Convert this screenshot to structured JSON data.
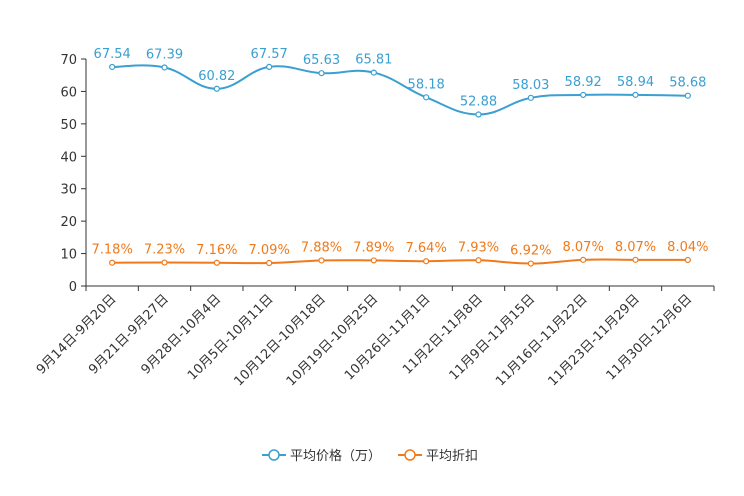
{
  "chart_data": {
    "type": "line",
    "categories": [
      "9月14日-9月20日",
      "9月21日-9月27日",
      "9月28日-10月4日",
      "10月5日-10月11日",
      "10月12日-10月18日",
      "10月19日-10月25日",
      "10月26日-11月1日",
      "11月2日-11月8日",
      "11月9日-11月15日",
      "11月16日-11月22日",
      "11月23日-11月29日",
      "11月30日-12月6日"
    ],
    "series": [
      {
        "name": "平均价格（万）",
        "color": "#3a9fd1",
        "values": [
          67.54,
          67.39,
          60.82,
          67.57,
          65.63,
          65.81,
          58.18,
          52.88,
          58.03,
          58.92,
          58.94,
          58.68
        ],
        "labels": [
          "67.54",
          "67.39",
          "60.82",
          "67.57",
          "65.63",
          "65.81",
          "58.18",
          "52.88",
          "58.03",
          "58.92",
          "58.94",
          "58.68"
        ]
      },
      {
        "name": "平均折扣",
        "color": "#ef7a1c",
        "values": [
          7.18,
          7.23,
          7.16,
          7.09,
          7.88,
          7.89,
          7.64,
          7.93,
          6.92,
          8.07,
          8.07,
          8.04
        ],
        "labels": [
          "7.18%",
          "7.23%",
          "7.16%",
          "7.09%",
          "7.88%",
          "7.89%",
          "7.64%",
          "7.93%",
          "6.92%",
          "8.07%",
          "8.07%",
          "8.04%"
        ]
      }
    ],
    "yticks": [
      0,
      10,
      20,
      30,
      40,
      50,
      60,
      70
    ],
    "ylim": [
      0,
      70
    ],
    "title": "",
    "xlabel": "",
    "ylabel": "",
    "grid": false,
    "legend_position": "bottom-center"
  }
}
